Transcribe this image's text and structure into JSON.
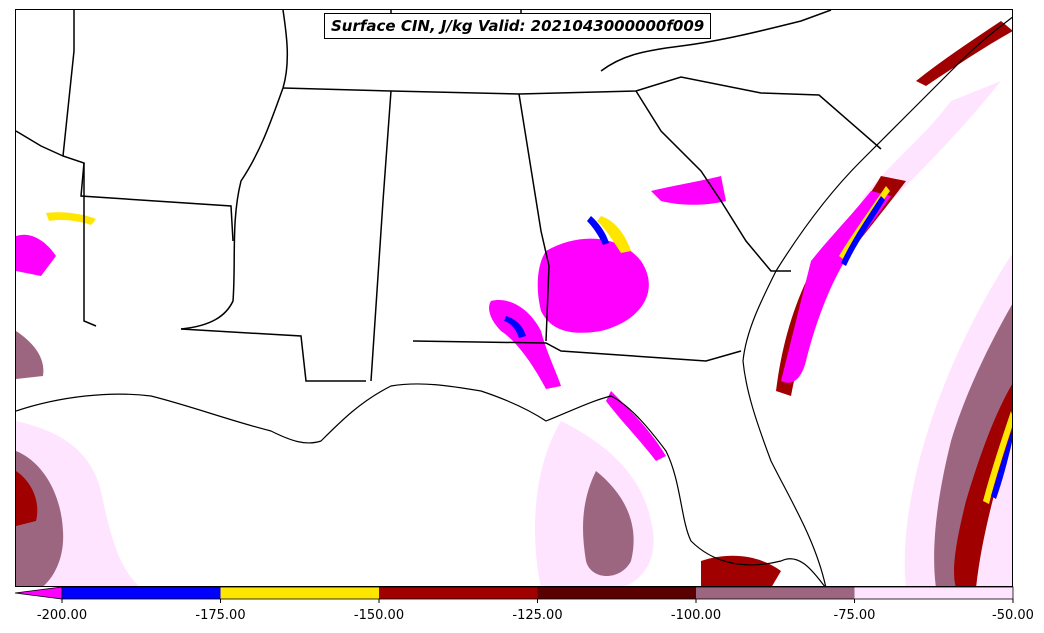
{
  "title": "Surface CIN, J/kg Valid: 2021043000000f009",
  "colorbar": {
    "tick_labels": [
      "-200.00",
      "-175.00",
      "-150.00",
      "-125.00",
      "-100.00",
      "-75.00",
      "-50.00"
    ],
    "colors": [
      "#ff00ff",
      "#0000ff",
      "#ffe600",
      "#a00000",
      "#5a0000",
      "#9c6680",
      "#ffe4ff"
    ],
    "extend": "min"
  },
  "legend_colors": {
    "magenta": "#ff00ff",
    "blue": "#0000ff",
    "yellow": "#ffe600",
    "dark_red": "#a00000",
    "maroon": "#5a0000",
    "mauve": "#9c6680",
    "pale_pink": "#ffe4ff",
    "borders": "#000000"
  }
}
